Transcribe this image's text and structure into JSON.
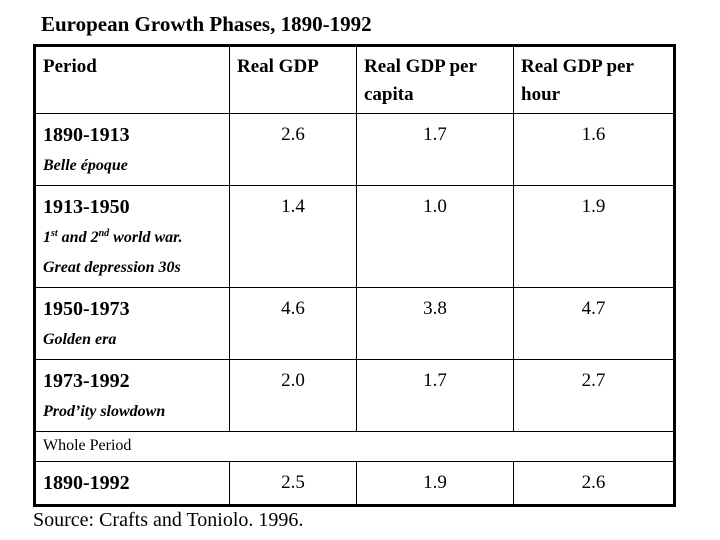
{
  "title": "European Growth Phases, 1890-1992",
  "table": {
    "headers": [
      "Period",
      "Real GDP",
      "Real GDP per capita",
      "Real GDP per hour"
    ],
    "rows": [
      {
        "period": "1890-1913",
        "note": "Belle époque",
        "values": [
          "2.6",
          "1.7",
          "1.6"
        ]
      },
      {
        "period": "1913-1950",
        "note_parts": [
          "1",
          "st",
          " and 2",
          "nd",
          " world war."
        ],
        "note2": "Great depression 30s",
        "values": [
          "1.4",
          "1.0",
          "1.9"
        ]
      },
      {
        "period": "1950-1973",
        "note": "Golden era",
        "values": [
          "4.6",
          "3.8",
          "4.7"
        ]
      },
      {
        "period": "1973-1992",
        "note": "Prod’ity slowdown",
        "values": [
          "2.0",
          "1.7",
          "2.7"
        ]
      }
    ],
    "whole_label": "Whole  Period",
    "total": {
      "period": "1890-1992",
      "values": [
        "2.5",
        "1.9",
        "2.6"
      ]
    }
  },
  "source": "Source: Crafts and Toniolo. 1996."
}
